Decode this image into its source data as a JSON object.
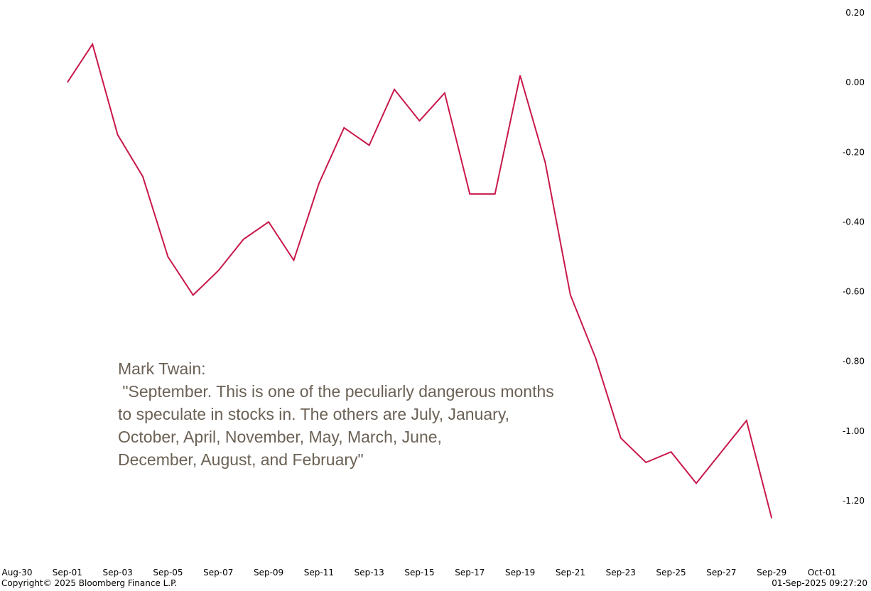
{
  "chart_data": {
    "type": "line",
    "title": "",
    "xlabel": "",
    "ylabel": "",
    "x": [
      "2025-09-01",
      "2025-09-02",
      "2025-09-03",
      "2025-09-04",
      "2025-09-05",
      "2025-09-06",
      "2025-09-07",
      "2025-09-08",
      "2025-09-09",
      "2025-09-10",
      "2025-09-11",
      "2025-09-12",
      "2025-09-13",
      "2025-09-14",
      "2025-09-15",
      "2025-09-16",
      "2025-09-17",
      "2025-09-18",
      "2025-09-19",
      "2025-09-20",
      "2025-09-21",
      "2025-09-22",
      "2025-09-23",
      "2025-09-24",
      "2025-09-25",
      "2025-09-26",
      "2025-09-27",
      "2025-09-28",
      "2025-09-29"
    ],
    "series": [
      {
        "values": [
          0.0,
          0.11,
          -0.15,
          -0.27,
          -0.5,
          -0.61,
          -0.54,
          -0.45,
          -0.4,
          -0.51,
          -0.29,
          -0.13,
          -0.18,
          -0.02,
          -0.11,
          -0.03,
          -0.32,
          -0.32,
          0.02,
          -0.23,
          -0.61,
          -0.79,
          -1.02,
          -1.09,
          -1.06,
          -1.15,
          -1.06,
          -0.97,
          -1.25
        ],
        "color": "#c8184a"
      }
    ],
    "xlim": [
      "2025-08-30",
      "2025-10-01"
    ],
    "ylim": [
      -1.3,
      0.2
    ],
    "y_ticks": [
      0.2,
      0.0,
      -0.2,
      -0.4,
      -0.6,
      -0.8,
      -1.0,
      -1.2
    ],
    "y_tick_labels": [
      "0.20",
      "0.00",
      "-0.20",
      "-0.40",
      "-0.60",
      "-0.80",
      "-1.00",
      "-1.20"
    ],
    "x_ticks": [
      "2025-08-30",
      "2025-09-01",
      "2025-09-03",
      "2025-09-05",
      "2025-09-07",
      "2025-09-09",
      "2025-09-11",
      "2025-09-13",
      "2025-09-15",
      "2025-09-17",
      "2025-09-19",
      "2025-09-21",
      "2025-09-23",
      "2025-09-25",
      "2025-09-27",
      "2025-09-29",
      "2025-10-01"
    ],
    "x_tick_labels": [
      "Aug-30",
      "Sep-01",
      "Sep-03",
      "Sep-05",
      "Sep-07",
      "Sep-09",
      "Sep-11",
      "Sep-13",
      "Sep-15",
      "Sep-17",
      "Sep-19",
      "Sep-21",
      "Sep-23",
      "Sep-25",
      "Sep-27",
      "Sep-29",
      "Oct-01"
    ],
    "y_axis_position": "right",
    "grid": false,
    "legend": "none",
    "annotation": "Mark Twain:\n \"September. This is one of the peculiarly dangerous months\nto speculate in stocks in. The others are July, January,\nOctober, April, November, May, March, June,\nDecember, August, and February\""
  },
  "footer": {
    "copyright": "Copyright© 2025 Bloomberg Finance L.P.",
    "timestamp": "01-Sep-2025 09:27:20"
  }
}
